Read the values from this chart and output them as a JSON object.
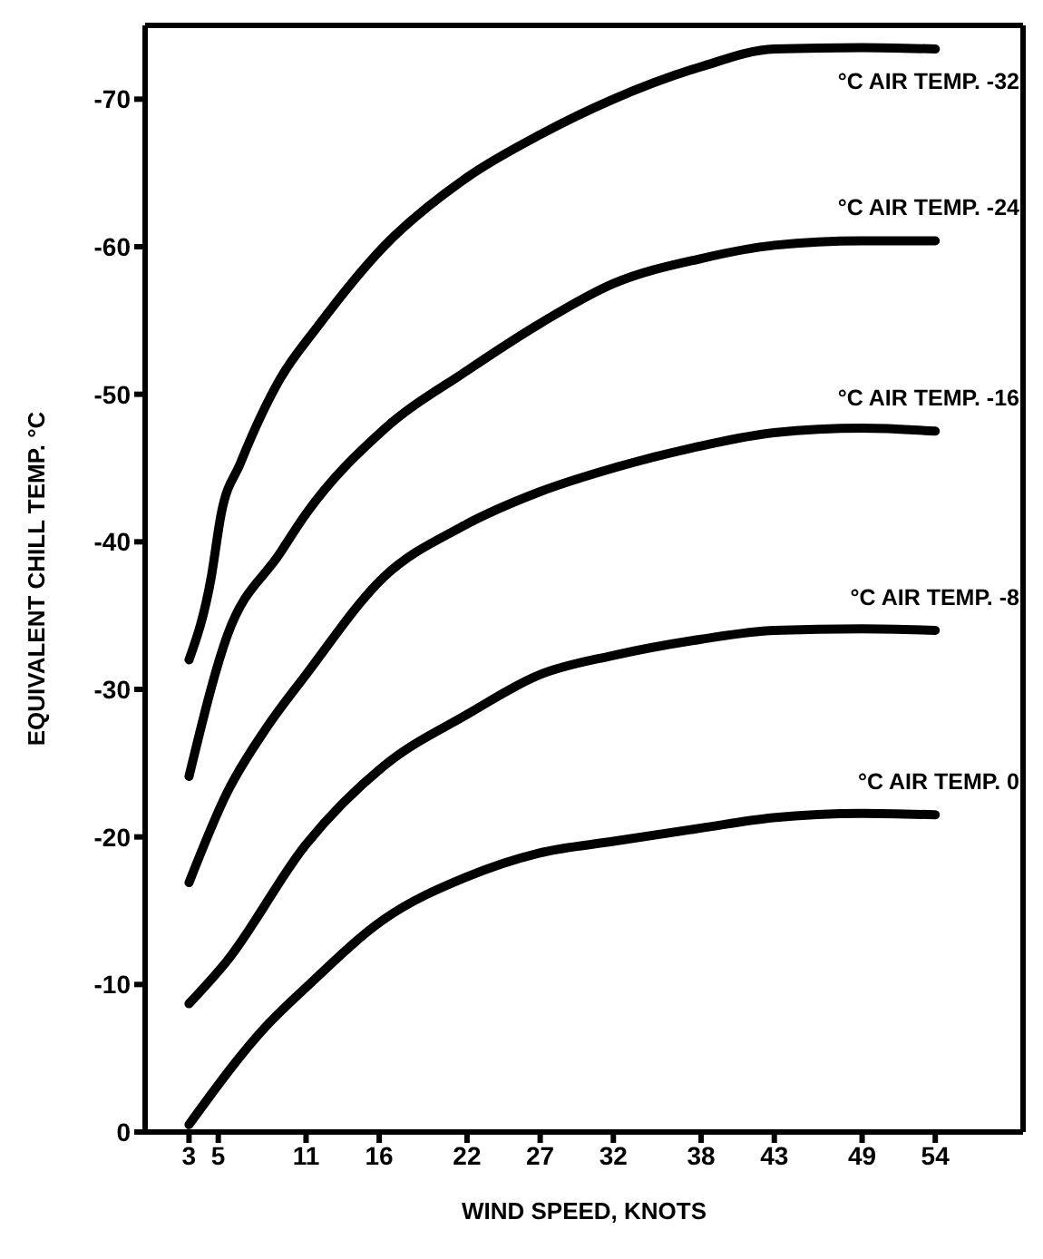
{
  "chart_data": {
    "type": "line",
    "xlabel": "WIND SPEED, KNOTS",
    "ylabel": "EQUIVALENT CHILL TEMP. °C",
    "xlim": [
      0,
      60
    ],
    "xticks": [
      3,
      5,
      11,
      16,
      22,
      27,
      32,
      38,
      43,
      49,
      54
    ],
    "ylim": [
      0,
      -75
    ],
    "yticks": [
      0,
      -10,
      -20,
      -30,
      -40,
      -50,
      -60,
      -70
    ],
    "marker": "none",
    "line_style": "solid",
    "series": [
      {
        "name": "°C AIR TEMP. -32",
        "color": "#000000",
        "x": [
          3,
          4.5,
          5.2,
          6.5,
          9.2,
          11.8,
          16.3,
          22,
          27,
          32,
          38,
          43,
          49,
          54
        ],
        "values": [
          -32,
          -37.5,
          -41.9,
          -45.3,
          -51,
          -54.6,
          -60,
          -64.7,
          -67.6,
          -70,
          -72.2,
          -73.4,
          -73.5,
          -73.4
        ]
      },
      {
        "name": "°C AIR TEMP. -24",
        "color": "#000000",
        "x": [
          3,
          5.6,
          9.2,
          11,
          16.3,
          22,
          27,
          32,
          38,
          43,
          49,
          54
        ],
        "values": [
          -24.1,
          -33.6,
          -39.2,
          -41.9,
          -47.6,
          -51.6,
          -54.8,
          -57.5,
          -59.2,
          -60.1,
          -60.4,
          -60.4
        ]
      },
      {
        "name": "°C AIR TEMP. -16",
        "color": "#000000",
        "x": [
          3,
          5.6,
          8.3,
          11,
          16.3,
          21.6,
          27,
          32,
          38,
          43,
          49,
          54
        ],
        "values": [
          -16.9,
          -23,
          -27.4,
          -31,
          -37.6,
          -41,
          -43.4,
          -45,
          -46.5,
          -47.4,
          -47.7,
          -47.5
        ]
      },
      {
        "name": "°C AIR TEMP. -8",
        "color": "#000000",
        "x": [
          3,
          5.6,
          11,
          16.3,
          22,
          27,
          32,
          38,
          43,
          49,
          54
        ],
        "values": [
          -8.7,
          -11.6,
          -19.5,
          -24.8,
          -28.3,
          -31,
          -32.3,
          -33.4,
          -34,
          -34.1,
          -34
        ]
      },
      {
        "name": "°C AIR TEMP. 0",
        "color": "#000000",
        "x": [
          3,
          8.3,
          11,
          16.3,
          22,
          26.9,
          32,
          38,
          42.9,
          49,
          54
        ],
        "values": [
          -0.5,
          -7.2,
          -9.8,
          -14.4,
          -17.3,
          -18.9,
          -19.7,
          -20.6,
          -21.3,
          -21.6,
          -21.5
        ]
      }
    ]
  }
}
